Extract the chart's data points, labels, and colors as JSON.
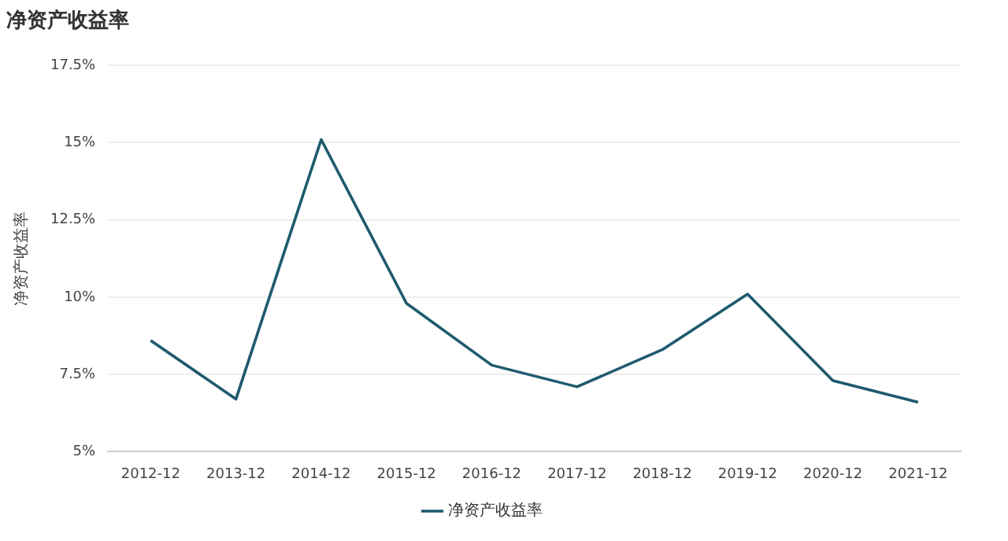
{
  "chart_data": {
    "type": "line",
    "title": "净资产收益率",
    "ylabel": "净资产收益率",
    "categories": [
      "2012-12",
      "2013-12",
      "2014-12",
      "2015-12",
      "2016-12",
      "2017-12",
      "2018-12",
      "2019-12",
      "2020-12",
      "2021-12"
    ],
    "series": [
      {
        "name": "净资产收益率",
        "color": "#1f5a6e",
        "values": [
          8.6,
          6.7,
          15.1,
          9.8,
          7.8,
          7.1,
          8.3,
          10.1,
          7.3,
          6.6
        ]
      }
    ],
    "ylim": [
      5,
      17.5
    ],
    "yticks": [
      {
        "value": 5,
        "label": "5%"
      },
      {
        "value": 7.5,
        "label": "7.5%"
      },
      {
        "value": 10,
        "label": "10%"
      },
      {
        "value": 12.5,
        "label": "12.5%"
      },
      {
        "value": 15,
        "label": "15%"
      },
      {
        "value": 17.5,
        "label": "17.5%"
      }
    ],
    "grid": "y",
    "legend": "bottom",
    "marker": "none",
    "line_style": "solid"
  }
}
